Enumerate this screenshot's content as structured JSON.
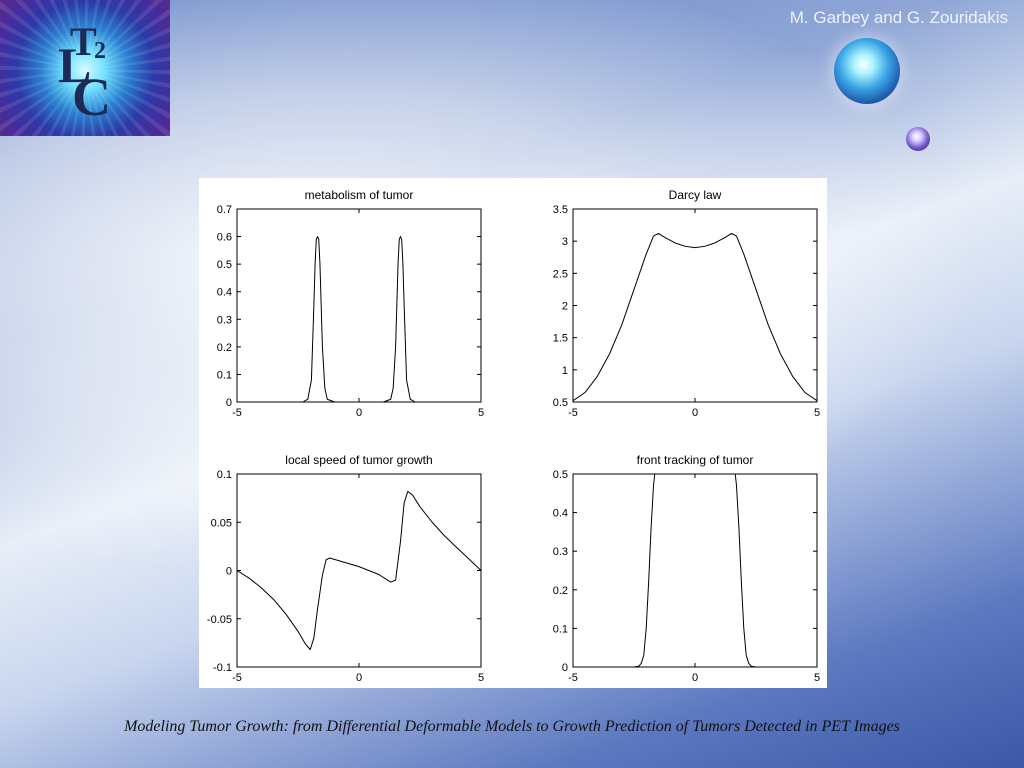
{
  "header": {
    "authors": "M. Garbey and G. Zouridakis",
    "logo": {
      "t": "T",
      "two": "2",
      "l": "L",
      "c": "C"
    }
  },
  "caption": "Modeling Tumor Growth: from Differential Deformable Models to Growth Prediction of Tumors Detected in PET Images",
  "chart_data": [
    {
      "type": "line",
      "title": "metabolism of tumor",
      "xlabel": "",
      "ylabel": "",
      "xlim": [
        -5,
        5
      ],
      "ylim": [
        0,
        0.7
      ],
      "xticks": [
        -5,
        0,
        5
      ],
      "yticks": [
        0,
        0.1,
        0.2,
        0.3,
        0.4,
        0.5,
        0.6,
        0.7
      ],
      "grid": false,
      "x": [
        -5,
        -2.3,
        -2.1,
        -1.95,
        -1.85,
        -1.8,
        -1.75,
        -1.7,
        -1.65,
        -1.6,
        -1.55,
        -1.5,
        -1.4,
        -1.3,
        -1.0,
        0,
        1.0,
        1.3,
        1.4,
        1.5,
        1.55,
        1.6,
        1.65,
        1.7,
        1.75,
        1.8,
        1.85,
        1.95,
        2.1,
        2.3,
        5
      ],
      "series": [
        {
          "values": [
            0,
            0,
            0.01,
            0.08,
            0.35,
            0.5,
            0.59,
            0.6,
            0.59,
            0.5,
            0.35,
            0.2,
            0.05,
            0.01,
            0,
            0,
            0,
            0.01,
            0.05,
            0.2,
            0.35,
            0.5,
            0.59,
            0.6,
            0.59,
            0.5,
            0.35,
            0.08,
            0.01,
            0,
            0
          ]
        }
      ]
    },
    {
      "type": "line",
      "title": "Darcy law",
      "xlabel": "",
      "ylabel": "",
      "xlim": [
        -5,
        5
      ],
      "ylim": [
        0.5,
        3.5
      ],
      "xticks": [
        -5,
        0,
        5
      ],
      "yticks": [
        0.5,
        1,
        1.5,
        2,
        2.5,
        3,
        3.5
      ],
      "grid": false,
      "x": [
        -5,
        -4.5,
        -4,
        -3.5,
        -3,
        -2.5,
        -2,
        -1.7,
        -1.5,
        -1.2,
        -0.8,
        -0.4,
        0,
        0.4,
        0.8,
        1.2,
        1.5,
        1.7,
        2,
        2.5,
        3,
        3.5,
        4,
        4.5,
        5
      ],
      "series": [
        {
          "values": [
            0.52,
            0.65,
            0.9,
            1.25,
            1.7,
            2.25,
            2.8,
            3.08,
            3.12,
            3.05,
            2.97,
            2.92,
            2.9,
            2.92,
            2.97,
            3.05,
            3.12,
            3.08,
            2.8,
            2.25,
            1.7,
            1.25,
            0.9,
            0.65,
            0.52
          ]
        }
      ]
    },
    {
      "type": "line",
      "title": "local speed of tumor growth",
      "xlabel": "",
      "ylabel": "",
      "xlim": [
        -5,
        5
      ],
      "ylim": [
        -0.1,
        0.1
      ],
      "xticks": [
        -5,
        0,
        5
      ],
      "yticks": [
        -0.1,
        -0.05,
        0,
        0.05,
        0.1
      ],
      "grid": false,
      "x": [
        -5,
        -4.5,
        -4,
        -3.5,
        -3,
        -2.5,
        -2.2,
        -2.0,
        -1.85,
        -1.7,
        -1.5,
        -1.35,
        -1.2,
        -0.8,
        0,
        0.8,
        1.3,
        1.5,
        1.7,
        1.85,
        2.0,
        2.2,
        2.5,
        3,
        3.5,
        4,
        4.5,
        5
      ],
      "series": [
        {
          "values": [
            0,
            -0.008,
            -0.018,
            -0.03,
            -0.045,
            -0.063,
            -0.076,
            -0.082,
            -0.07,
            -0.04,
            -0.005,
            0.011,
            0.013,
            0.01,
            0.004,
            -0.004,
            -0.012,
            -0.01,
            0.03,
            0.07,
            0.082,
            0.078,
            0.066,
            0.05,
            0.036,
            0.024,
            0.012,
            0
          ]
        }
      ]
    },
    {
      "type": "line",
      "title": "front tracking of tumor",
      "xlabel": "",
      "ylabel": "",
      "xlim": [
        -5,
        5
      ],
      "ylim": [
        0,
        0.5
      ],
      "xticks": [
        -5,
        0,
        5
      ],
      "yticks": [
        0,
        0.1,
        0.2,
        0.3,
        0.4,
        0.5
      ],
      "grid": false,
      "x": [
        -5,
        -2.5,
        -2.3,
        -2.2,
        -2.1,
        -2.0,
        -1.9,
        -1.8,
        -1.7,
        -1.65,
        1.65,
        1.7,
        1.8,
        1.9,
        2.0,
        2.1,
        2.2,
        2.3,
        2.5,
        5
      ],
      "series": [
        {
          "values": [
            0,
            0,
            0.002,
            0.01,
            0.03,
            0.1,
            0.22,
            0.36,
            0.47,
            0.5,
            0.5,
            0.47,
            0.36,
            0.22,
            0.1,
            0.03,
            0.01,
            0.002,
            0,
            0
          ]
        }
      ]
    }
  ]
}
